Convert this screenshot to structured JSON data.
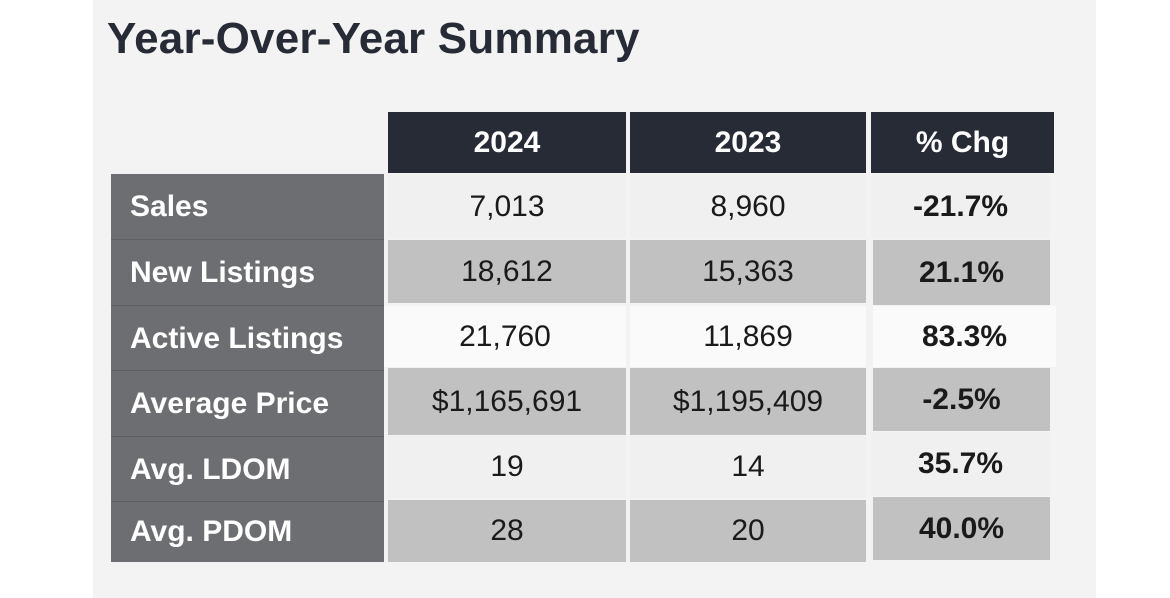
{
  "title": "Year-Over-Year Summary",
  "columns": [
    "2024",
    "2023",
    "% Chg"
  ],
  "rows": [
    {
      "label": "Sales",
      "v2024": "7,013",
      "v2023": "8,960",
      "chg": "-21.7%"
    },
    {
      "label": "New Listings",
      "v2024": "18,612",
      "v2023": "15,363",
      "chg": "21.1%"
    },
    {
      "label": "Active Listings",
      "v2024": "21,760",
      "v2023": "11,869",
      "chg": "83.3%"
    },
    {
      "label": "Average Price",
      "v2024": "$1,165,691",
      "v2023": "$1,195,409",
      "chg": "-2.5%"
    },
    {
      "label": "Avg. LDOM",
      "v2024": "19",
      "v2023": "14",
      "chg": "35.7%"
    },
    {
      "label": "Avg. PDOM",
      "v2024": "28",
      "v2023": "20",
      "chg": "40.0%"
    }
  ],
  "colors": {
    "header_bg": "#262b36",
    "label_bg": "#6d6e71",
    "row_light": "#f0f0f0",
    "row_dark": "#c1c1c1"
  }
}
